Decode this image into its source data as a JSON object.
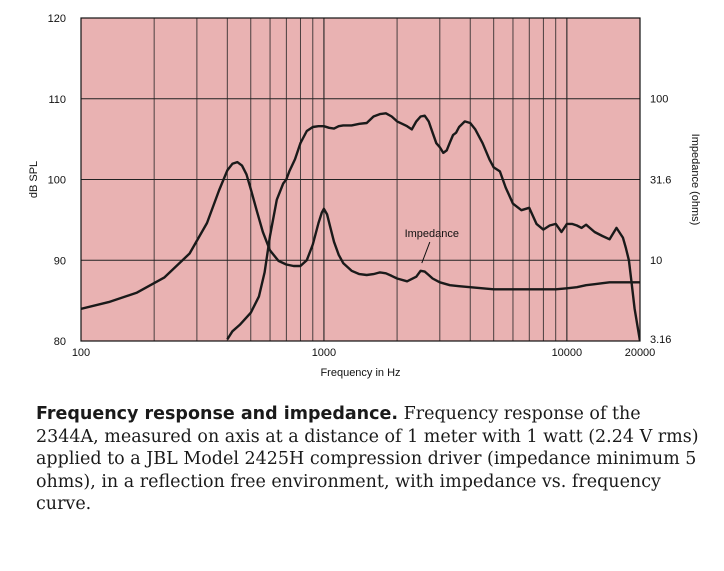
{
  "chart_data": {
    "type": "line",
    "xlabel": "Frequency in Hz",
    "ylabel": "dB SPL",
    "y2label": "Impedance (ohms)",
    "xscale": "log",
    "xlim": [
      100,
      20000
    ],
    "ylim": [
      80,
      120
    ],
    "y2scale": "log",
    "y2lim": [
      3.16,
      316
    ],
    "x_ticks": [
      "100",
      "1000",
      "10000",
      "20000"
    ],
    "y_ticks": [
      "80",
      "90",
      "100",
      "110",
      "120"
    ],
    "y2_ticks": [
      "3.16",
      "10",
      "31.6",
      "100"
    ],
    "grid": true,
    "background_color": "#e9b2b2",
    "line_color": "#1a1a1a",
    "annotations": [
      {
        "text": "Impedance",
        "x": 2300,
        "y": 92
      }
    ],
    "series": [
      {
        "curve": "frequency-response",
        "axis": "left",
        "unit": "dB SPL",
        "x": [
          400,
          420,
          450,
          500,
          540,
          570,
          600,
          640,
          680,
          700,
          720,
          760,
          800,
          850,
          900,
          950,
          1000,
          1050,
          1100,
          1150,
          1200,
          1300,
          1400,
          1500,
          1600,
          1700,
          1800,
          1900,
          2000,
          2100,
          2200,
          2300,
          2400,
          2500,
          2600,
          2700,
          2800,
          2900,
          3000,
          3100,
          3200,
          3300,
          3400,
          3500,
          3600,
          3800,
          4000,
          4200,
          4500,
          4800,
          5000,
          5300,
          5600,
          6000,
          6500,
          7000,
          7500,
          8000,
          8500,
          9000,
          9500,
          10000,
          10500,
          11000,
          11500,
          12000,
          13000,
          14000,
          15000,
          16000,
          17000,
          17500,
          18000,
          18500,
          19000,
          19500,
          20000
        ],
        "y": [
          80.2,
          81.2,
          82.0,
          83.5,
          85.5,
          88.5,
          93.0,
          97.5,
          99.5,
          100.0,
          101.0,
          102.5,
          104.5,
          106.0,
          106.5,
          106.6,
          106.6,
          106.4,
          106.3,
          106.6,
          106.7,
          106.7,
          106.9,
          107.0,
          107.8,
          108.1,
          108.2,
          107.8,
          107.2,
          106.9,
          106.6,
          106.2,
          107.2,
          107.8,
          107.9,
          107.2,
          105.8,
          104.5,
          104.0,
          103.3,
          103.6,
          104.6,
          105.5,
          105.8,
          106.5,
          107.2,
          107.0,
          106.2,
          104.5,
          102.5,
          101.5,
          101.0,
          99.0,
          97.0,
          96.2,
          96.5,
          94.5,
          93.8,
          94.3,
          94.5,
          93.5,
          94.5,
          94.5,
          94.3,
          94.0,
          94.4,
          93.5,
          93.0,
          92.6,
          94.0,
          92.8,
          91.5,
          90.0,
          87.0,
          84.0,
          82.0,
          80.0
        ]
      },
      {
        "curve": "impedance",
        "axis": "right",
        "unit": "ohms",
        "x": [
          100,
          130,
          170,
          220,
          280,
          330,
          370,
          400,
          420,
          440,
          460,
          480,
          500,
          530,
          560,
          600,
          650,
          700,
          750,
          800,
          850,
          900,
          950,
          980,
          1000,
          1030,
          1060,
          1100,
          1150,
          1200,
          1300,
          1400,
          1500,
          1600,
          1700,
          1800,
          1900,
          2000,
          2200,
          2400,
          2500,
          2600,
          2700,
          2800,
          3000,
          3300,
          3600,
          4000,
          4500,
          5000,
          6000,
          7000,
          8000,
          9000,
          10000,
          11000,
          12000,
          13000,
          14000,
          15000,
          16000,
          17000,
          18000,
          19000,
          20000
        ],
        "y": [
          5.0,
          5.5,
          6.3,
          7.8,
          11.0,
          17.0,
          27.0,
          36.0,
          39.5,
          40.5,
          38.5,
          34.0,
          27.5,
          20.0,
          15.0,
          11.5,
          9.9,
          9.4,
          9.2,
          9.2,
          10.0,
          12.5,
          17.0,
          19.7,
          20.8,
          19.2,
          16.2,
          13.0,
          10.8,
          9.6,
          8.6,
          8.2,
          8.1,
          8.2,
          8.4,
          8.3,
          8.0,
          7.7,
          7.4,
          7.9,
          8.6,
          8.5,
          8.1,
          7.7,
          7.3,
          7.0,
          6.9,
          6.8,
          6.7,
          6.6,
          6.6,
          6.6,
          6.6,
          6.6,
          6.7,
          6.8,
          7.0,
          7.1,
          7.2,
          7.3,
          7.3,
          7.3,
          7.3,
          7.3,
          7.3
        ]
      }
    ]
  },
  "caption": {
    "bold_text": "Frequency response and impedance.",
    "text": " Frequency response of the 2344A, measured on axis at a distance of 1 meter with 1 watt (2.24 V rms) applied to a JBL Model 2425H compression driver (impedance minimum 5 ohms), in a reflection free environment, with impedance vs. frequency curve."
  }
}
